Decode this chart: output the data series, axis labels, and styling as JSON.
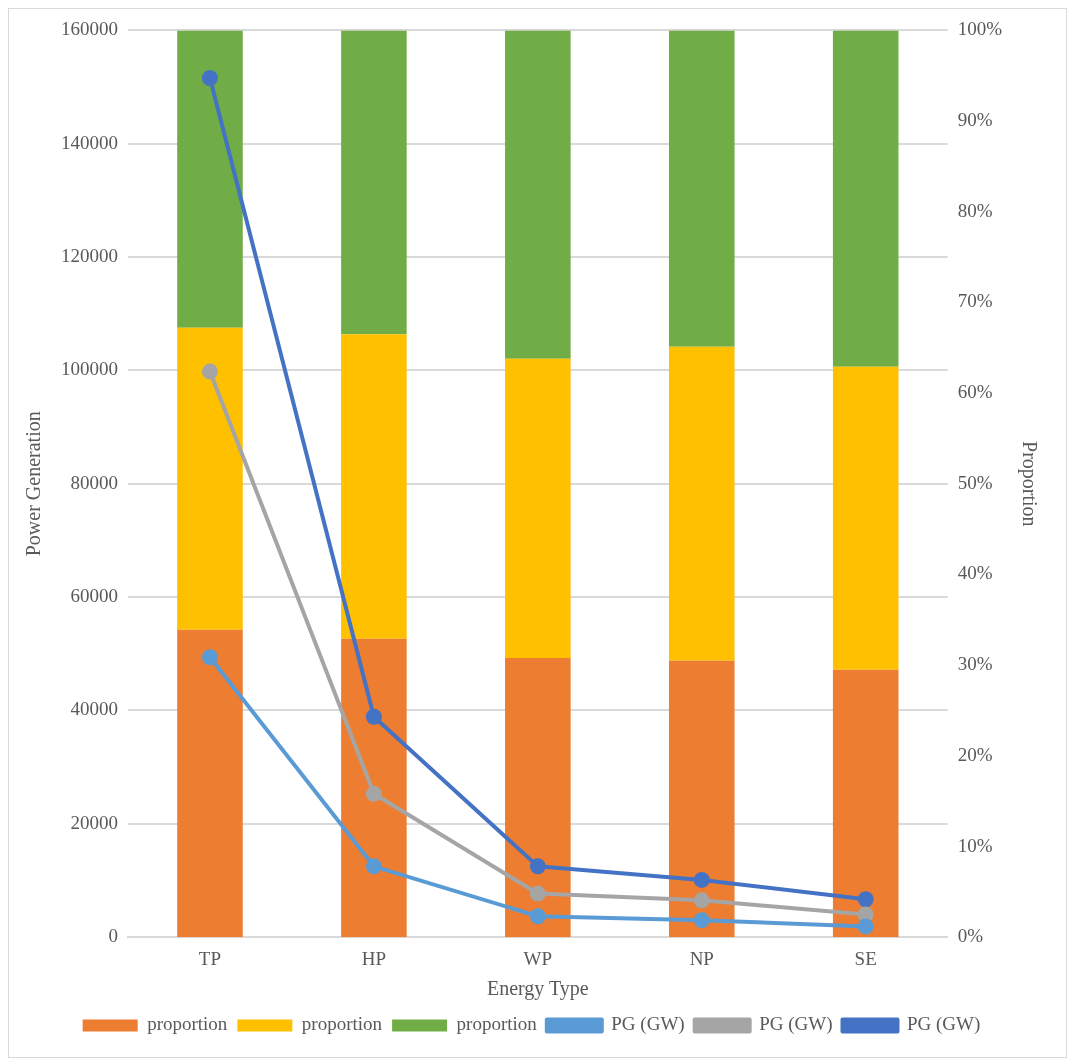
{
  "chart_data": {
    "type": "bar",
    "xlabel": "Energy Type",
    "ylabel": "Power Generation",
    "y2label": "Proportion",
    "categories": [
      "TP",
      "HP",
      "WP",
      "NP",
      "SE"
    ],
    "stacked": true,
    "series": [
      {
        "name": "proportion",
        "axis": "y2",
        "color": "#ed7d31",
        "values": [
          33.9,
          32.9,
          30.8,
          30.5,
          29.5
        ]
      },
      {
        "name": "proportion",
        "axis": "y2",
        "color": "#ffc000",
        "values": [
          33.3,
          33.6,
          33.0,
          34.6,
          33.4
        ]
      },
      {
        "name": "proportion",
        "axis": "y2",
        "color": "#70ad47",
        "values": [
          32.8,
          33.5,
          36.2,
          34.9,
          37.1
        ]
      },
      {
        "name": "PG (GW)",
        "type": "line",
        "axis": "y",
        "color": "#5b9bd5",
        "values": [
          49400,
          12500,
          3700,
          3000,
          1900
        ]
      },
      {
        "name": "PG (GW)",
        "type": "line",
        "axis": "y",
        "color": "#a5a5a5",
        "values": [
          99800,
          25300,
          7700,
          6500,
          4000
        ]
      },
      {
        "name": "PG (GW)",
        "type": "line",
        "axis": "y",
        "color": "#4472c4",
        "values": [
          151600,
          38900,
          12500,
          10100,
          6700
        ]
      }
    ],
    "ylim": [
      0,
      160000
    ],
    "yticks": [
      0,
      20000,
      40000,
      60000,
      80000,
      100000,
      120000,
      140000,
      160000
    ],
    "y2lim": [
      0,
      100
    ],
    "y2ticks": [
      {
        "value": 0,
        "label": "0%"
      },
      {
        "value": 10,
        "label": "10%"
      },
      {
        "value": 20,
        "label": "20%"
      },
      {
        "value": 30,
        "label": "30%"
      },
      {
        "value": 40,
        "label": "40%"
      },
      {
        "value": 50,
        "label": "50%"
      },
      {
        "value": 60,
        "label": "60%"
      },
      {
        "value": 70,
        "label": "70%"
      },
      {
        "value": 80,
        "label": "80%"
      },
      {
        "value": 90,
        "label": "90%"
      },
      {
        "value": 100,
        "label": "100%"
      }
    ],
    "grid": "y",
    "legend": "bottom",
    "marker": "circle",
    "line_style": "solid"
  }
}
